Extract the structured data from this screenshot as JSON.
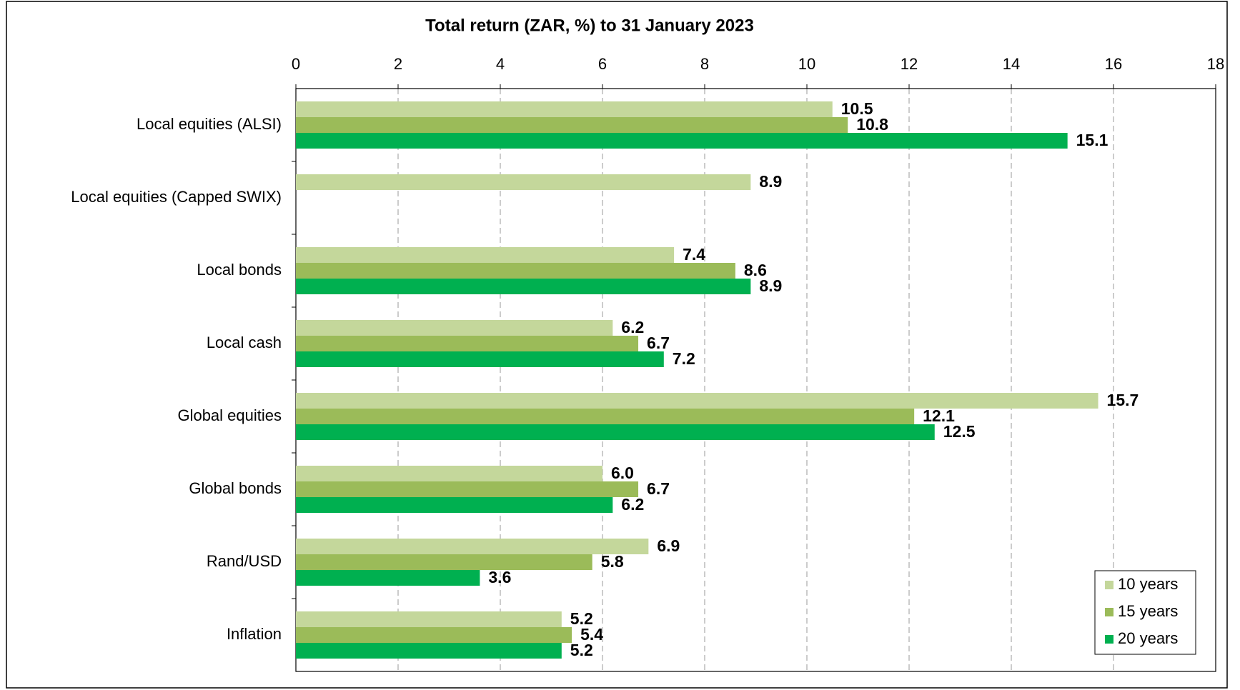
{
  "chart_data": {
    "type": "bar",
    "orientation": "horizontal",
    "title": "Total return (ZAR, %) to 31 January 2023",
    "categories": [
      "Local equities (ALSI)",
      "Local equities (Capped SWIX)",
      "Local bonds",
      "Local cash",
      "Global equities",
      "Global bonds",
      "Rand/USD",
      "Inflation"
    ],
    "series": [
      {
        "name": "10 years",
        "color": "#c4d79b",
        "values": [
          10.5,
          8.9,
          7.4,
          6.2,
          15.7,
          6.0,
          6.9,
          5.2
        ],
        "value_labels": [
          "10.5",
          "8.9",
          "7.4",
          "6.2",
          "15.7",
          "6.0",
          "6.9",
          "5.2"
        ]
      },
      {
        "name": "15 years",
        "color": "#9bbb59",
        "values": [
          10.8,
          null,
          8.6,
          6.7,
          12.1,
          6.7,
          5.8,
          5.4
        ],
        "value_labels": [
          "10.8",
          null,
          "8.6",
          "6.7",
          "12.1",
          "6.7",
          "5.8",
          "5.4"
        ]
      },
      {
        "name": "20 years",
        "color": "#00b050",
        "values": [
          15.1,
          null,
          8.9,
          7.2,
          12.5,
          6.2,
          3.6,
          5.2
        ],
        "value_labels": [
          "15.1",
          null,
          "8.9",
          "7.2",
          "12.5",
          "6.2",
          "3.6",
          "5.2"
        ]
      }
    ],
    "xlim": [
      0,
      18
    ],
    "xticks": [
      0,
      2,
      4,
      6,
      8,
      10,
      12,
      14,
      16,
      18
    ],
    "grid": true,
    "legend": "lower right"
  }
}
